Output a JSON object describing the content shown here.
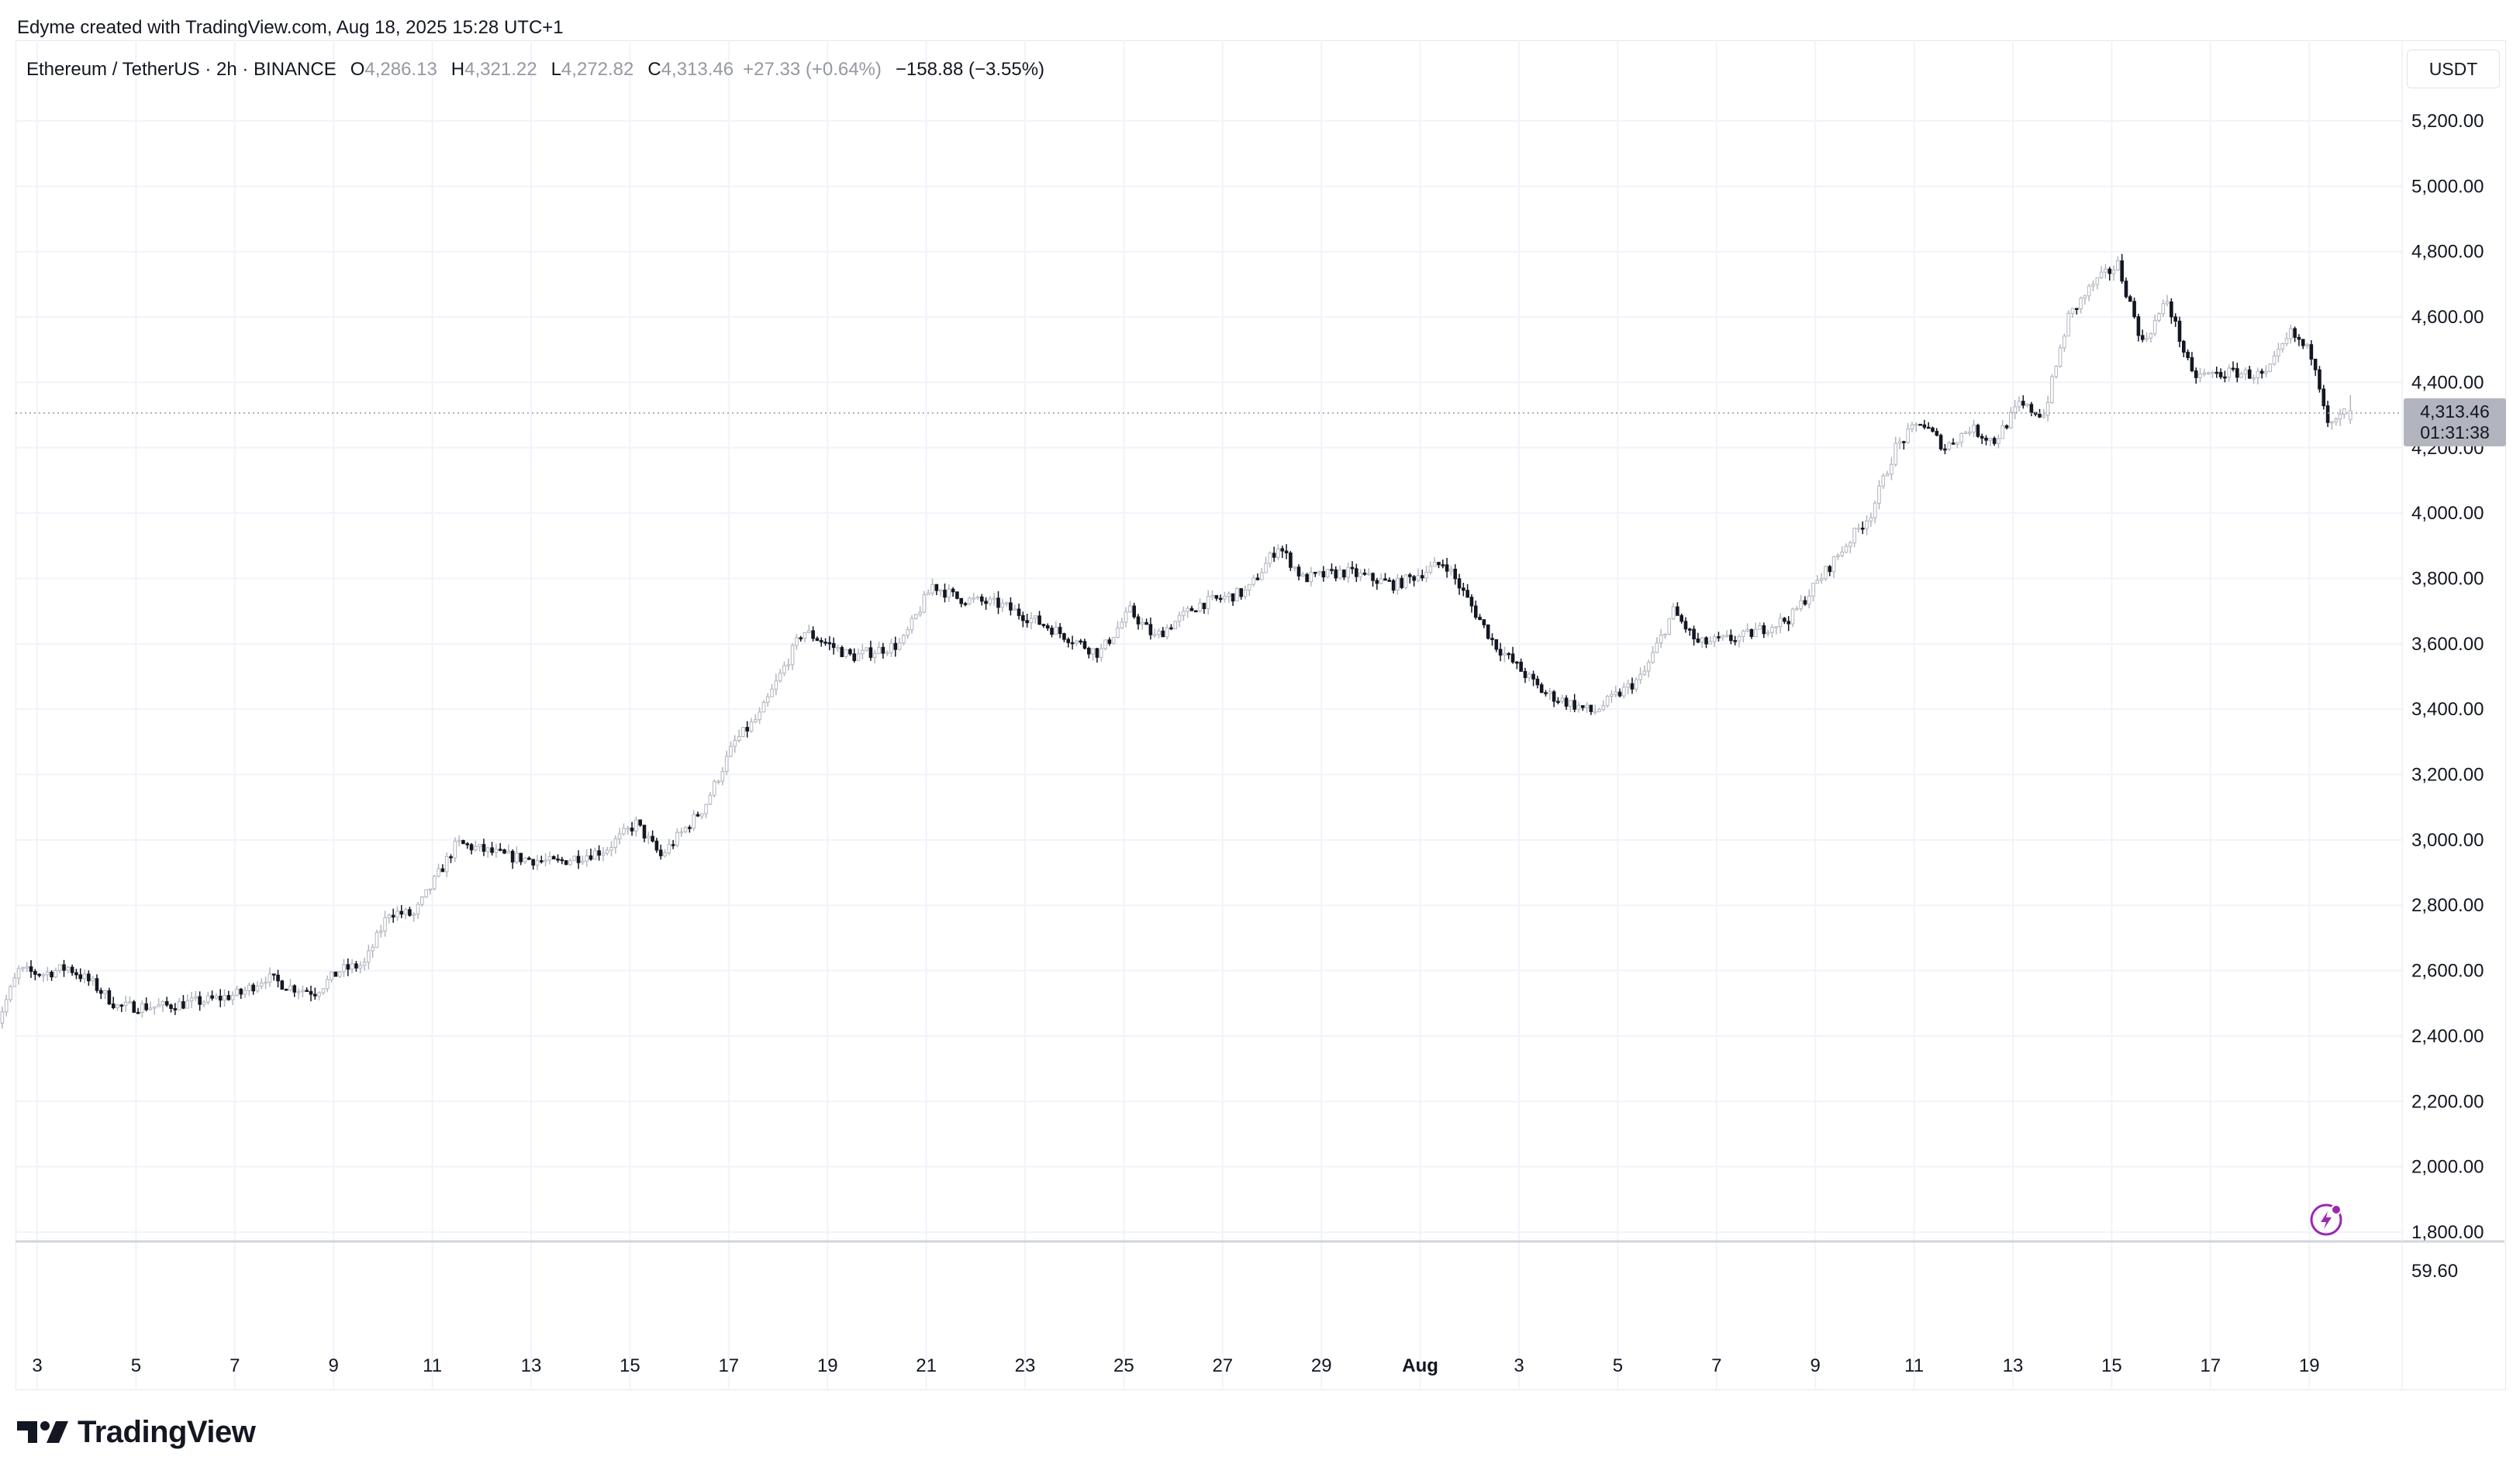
{
  "header": {
    "attribution": "Edyme created with TradingView.com, Aug 18, 2025 15:28 UTC+1"
  },
  "legend": {
    "symbol": "Ethereum / TetherUS · 2h · BINANCE",
    "o_label": "O",
    "o_value": "4,286.13",
    "h_label": "H",
    "h_value": "4,321.22",
    "l_label": "L",
    "l_value": "4,272.82",
    "c_label": "C",
    "c_value": "4,313.46",
    "change": "+27.33 (+0.64%)",
    "drawdown": "−158.88 (−3.55%)"
  },
  "currency_button": "USDT",
  "price_tag": {
    "price": "4,313.46",
    "countdown": "01:31:38"
  },
  "indicator_value": "59.60",
  "brand": "TradingView",
  "colors": {
    "candle": "#131722",
    "candle_light": "#b2b5be",
    "grid": "#f0f3fa",
    "tag_bg": "#b2b5be",
    "accent": "#9c27b0"
  },
  "chart_data": {
    "type": "candlestick",
    "title": "Ethereum / TetherUS · 2h · BINANCE",
    "interval": "2h",
    "x_tick_labels": [
      "3",
      "5",
      "7",
      "9",
      "11",
      "13",
      "15",
      "17",
      "19",
      "21",
      "23",
      "25",
      "27",
      "29",
      "Aug",
      "3",
      "5",
      "7",
      "9",
      "11",
      "13",
      "15",
      "17",
      "19"
    ],
    "y_tick_labels": [
      "5,200.00",
      "5,000.00",
      "4,800.00",
      "4,600.00",
      "4,400.00",
      "4,200.00",
      "4,000.00",
      "3,800.00",
      "3,600.00",
      "3,400.00",
      "3,200.00",
      "3,000.00",
      "2,800.00",
      "2,600.00",
      "2,400.00",
      "2,200.00",
      "2,000.00",
      "1,800.00"
    ],
    "ylim": [
      1800,
      5200
    ],
    "xlim": [
      "2025-07-02",
      "2025-08-19"
    ],
    "last_price": 4313.46,
    "grid": true,
    "price_path": [
      {
        "date": "2025-07-02",
        "close": 2420
      },
      {
        "date": "2025-07-02",
        "close": 2600
      },
      {
        "date": "2025-07-03",
        "close": 2590
      },
      {
        "date": "2025-07-03",
        "close": 2610
      },
      {
        "date": "2025-07-04",
        "close": 2560
      },
      {
        "date": "2025-07-04",
        "close": 2490
      },
      {
        "date": "2025-07-05",
        "close": 2490
      },
      {
        "date": "2025-07-06",
        "close": 2510
      },
      {
        "date": "2025-07-07",
        "close": 2530
      },
      {
        "date": "2025-07-07",
        "close": 2580
      },
      {
        "date": "2025-07-08",
        "close": 2550
      },
      {
        "date": "2025-07-08",
        "close": 2535
      },
      {
        "date": "2025-07-09",
        "close": 2600
      },
      {
        "date": "2025-07-09",
        "close": 2620
      },
      {
        "date": "2025-07-10",
        "close": 2780
      },
      {
        "date": "2025-07-10",
        "close": 2770
      },
      {
        "date": "2025-07-11",
        "close": 2990
      },
      {
        "date": "2025-07-12",
        "close": 2950
      },
      {
        "date": "2025-07-13",
        "close": 2930
      },
      {
        "date": "2025-07-14",
        "close": 2970
      },
      {
        "date": "2025-07-15",
        "close": 3050
      },
      {
        "date": "2025-07-15",
        "close": 2950
      },
      {
        "date": "2025-07-16",
        "close": 3100
      },
      {
        "date": "2025-07-17",
        "close": 3300
      },
      {
        "date": "2025-07-17",
        "close": 3380
      },
      {
        "date": "2025-07-18",
        "close": 3640
      },
      {
        "date": "2025-07-19",
        "close": 3560
      },
      {
        "date": "2025-07-20",
        "close": 3600
      },
      {
        "date": "2025-07-21",
        "close": 3780
      },
      {
        "date": "2025-07-21",
        "close": 3740
      },
      {
        "date": "2025-07-22",
        "close": 3720
      },
      {
        "date": "2025-07-23",
        "close": 3650
      },
      {
        "date": "2025-07-24",
        "close": 3570
      },
      {
        "date": "2025-07-25",
        "close": 3700
      },
      {
        "date": "2025-07-25",
        "close": 3620
      },
      {
        "date": "2025-07-26",
        "close": 3720
      },
      {
        "date": "2025-07-27",
        "close": 3760
      },
      {
        "date": "2025-07-28",
        "close": 3900
      },
      {
        "date": "2025-07-28",
        "close": 3800
      },
      {
        "date": "2025-07-29",
        "close": 3820
      },
      {
        "date": "2025-07-30",
        "close": 3780
      },
      {
        "date": "2025-07-31",
        "close": 3850
      },
      {
        "date": "2025-08-01",
        "close": 3600
      },
      {
        "date": "2025-08-02",
        "close": 3450
      },
      {
        "date": "2025-08-03",
        "close": 3390
      },
      {
        "date": "2025-08-04",
        "close": 3500
      },
      {
        "date": "2025-08-05",
        "close": 3700
      },
      {
        "date": "2025-08-05",
        "close": 3600
      },
      {
        "date": "2025-08-06",
        "close": 3620
      },
      {
        "date": "2025-08-07",
        "close": 3680
      },
      {
        "date": "2025-08-08",
        "close": 3880
      },
      {
        "date": "2025-08-09",
        "close": 4000
      },
      {
        "date": "2025-08-09",
        "close": 4200
      },
      {
        "date": "2025-08-10",
        "close": 4280
      },
      {
        "date": "2025-08-10",
        "close": 4200
      },
      {
        "date": "2025-08-11",
        "close": 4260
      },
      {
        "date": "2025-08-11",
        "close": 4220
      },
      {
        "date": "2025-08-12",
        "close": 4330
      },
      {
        "date": "2025-08-12",
        "close": 4300
      },
      {
        "date": "2025-08-13",
        "close": 4600
      },
      {
        "date": "2025-08-13",
        "close": 4700
      },
      {
        "date": "2025-08-14",
        "close": 4760
      },
      {
        "date": "2025-08-14",
        "close": 4520
      },
      {
        "date": "2025-08-15",
        "close": 4650
      },
      {
        "date": "2025-08-15",
        "close": 4420
      },
      {
        "date": "2025-08-16",
        "close": 4430
      },
      {
        "date": "2025-08-17",
        "close": 4420
      },
      {
        "date": "2025-08-17",
        "close": 4550
      },
      {
        "date": "2025-08-18",
        "close": 4480
      },
      {
        "date": "2025-08-18",
        "close": 4260
      },
      {
        "date": "2025-08-18",
        "close": 4313
      }
    ]
  }
}
